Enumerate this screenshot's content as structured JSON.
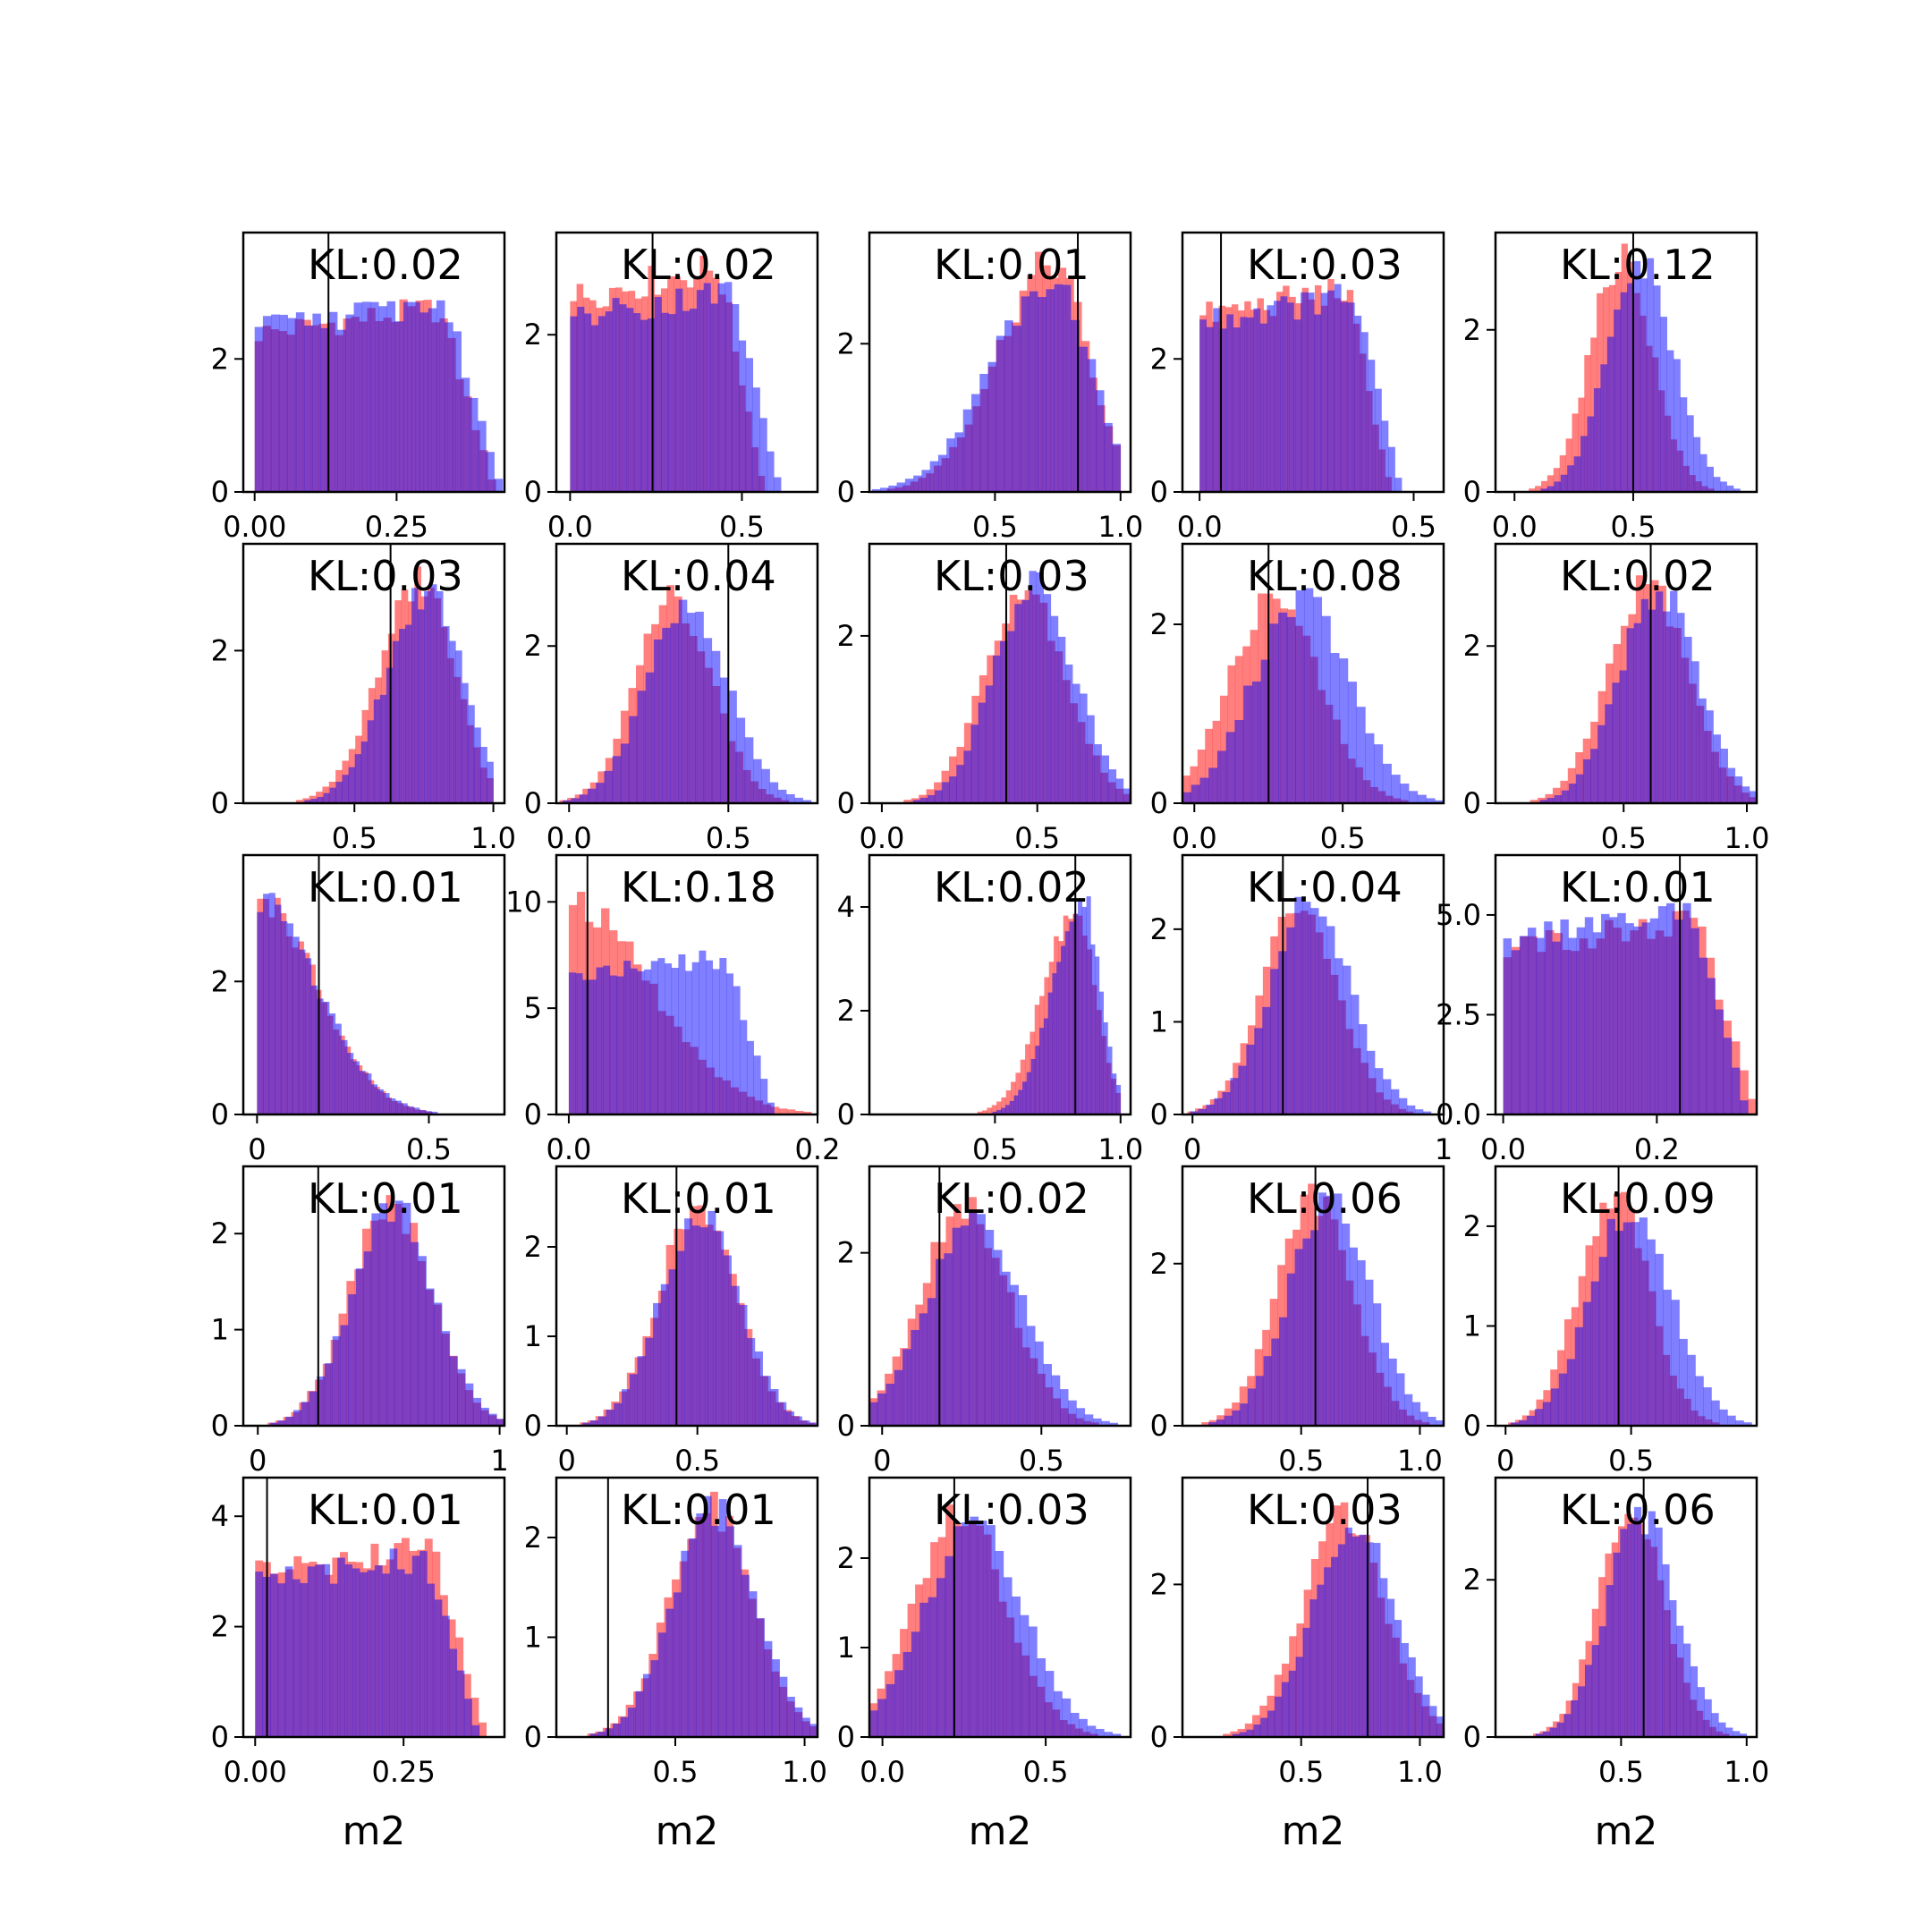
{
  "figure": {
    "x_axis_label": "m2",
    "colors": {
      "series_a": "#ff0000",
      "series_b": "#0000ff",
      "series_alpha": 0.5,
      "marker_line": "#000000",
      "frame": "#000000"
    }
  },
  "chart_data": [
    {
      "type": "histogram",
      "row": 0,
      "col": 0,
      "annotation": "KL:0.02",
      "xlim": [
        -0.02,
        0.44
      ],
      "ylim": [
        0,
        3.9
      ],
      "xticks": [
        0.0,
        0.25
      ],
      "xtick_labels": [
        "0.00",
        "0.25"
      ],
      "yticks": [
        0,
        2
      ],
      "ytick_labels": [
        "0",
        "2"
      ],
      "marker_x": 0.13,
      "dist_a": {
        "shape": "uniform",
        "lo": 0.0,
        "hi": 0.36,
        "peak": 2.8
      },
      "dist_b": {
        "shape": "uniform",
        "lo": 0.0,
        "hi": 0.37,
        "peak": 2.9
      }
    },
    {
      "type": "histogram",
      "row": 0,
      "col": 1,
      "annotation": "KL:0.02",
      "xlim": [
        -0.04,
        0.72
      ],
      "ylim": [
        0,
        3.3
      ],
      "xticks": [
        0.0,
        0.5
      ],
      "xtick_labels": [
        "0.0",
        "0.5"
      ],
      "yticks": [
        0,
        2
      ],
      "ytick_labels": [
        "0",
        "2"
      ],
      "marker_x": 0.24,
      "dist_a": {
        "shape": "uniform",
        "lo": 0.0,
        "hi": 0.48,
        "peak": 2.9
      },
      "dist_b": {
        "shape": "uniform",
        "lo": 0.0,
        "hi": 0.52,
        "peak": 2.6
      }
    },
    {
      "type": "histogram",
      "row": 0,
      "col": 2,
      "annotation": "KL:0.01",
      "xlim": [
        0.0,
        1.04
      ],
      "ylim": [
        0,
        3.5
      ],
      "xticks": [
        0.5,
        1.0
      ],
      "xtick_labels": [
        "0.5",
        "1.0"
      ],
      "yticks": [
        0,
        2
      ],
      "ytick_labels": [
        "0",
        "2"
      ],
      "marker_x": 0.83,
      "dist_a": {
        "shape": "skew",
        "mode": 0.73,
        "left": 0.22,
        "right": 0.14,
        "lo": 0.0,
        "hi": 1.0,
        "peak": 3.1
      },
      "dist_b": {
        "shape": "skew",
        "mode": 0.73,
        "left": 0.24,
        "right": 0.15,
        "lo": 0.0,
        "hi": 1.0,
        "peak": 2.9
      }
    },
    {
      "type": "histogram",
      "row": 0,
      "col": 3,
      "annotation": "KL:0.03",
      "xlim": [
        -0.04,
        0.57
      ],
      "ylim": [
        0,
        3.9
      ],
      "xticks": [
        0.0,
        0.5
      ],
      "xtick_labels": [
        "0.0",
        "0.5"
      ],
      "yticks": [
        0,
        2
      ],
      "ytick_labels": [
        "0",
        "2"
      ],
      "marker_x": 0.05,
      "dist_a": {
        "shape": "uniform",
        "lo": 0.0,
        "hi": 0.38,
        "peak": 3.1
      },
      "dist_b": {
        "shape": "uniform",
        "lo": 0.0,
        "hi": 0.4,
        "peak": 3.0
      }
    },
    {
      "type": "histogram",
      "row": 0,
      "col": 4,
      "annotation": "KL:0.12",
      "xlim": [
        -0.08,
        1.02
      ],
      "ylim": [
        0,
        3.2
      ],
      "xticks": [
        0.0,
        0.5
      ],
      "xtick_labels": [
        "0.0",
        "0.5"
      ],
      "yticks": [
        0,
        2
      ],
      "ytick_labels": [
        "0",
        "2"
      ],
      "marker_x": 0.5,
      "dist_a": {
        "shape": "gauss",
        "mu": 0.45,
        "sd": 0.13,
        "peak": 2.9
      },
      "dist_b": {
        "shape": "gauss",
        "mu": 0.53,
        "sd": 0.14,
        "peak": 2.8
      }
    },
    {
      "type": "histogram",
      "row": 1,
      "col": 0,
      "annotation": "KL:0.03",
      "xlim": [
        0.1,
        1.04
      ],
      "ylim": [
        0,
        3.4
      ],
      "xticks": [
        0.5,
        1.0
      ],
      "xtick_labels": [
        "0.5",
        "1.0"
      ],
      "yticks": [
        0,
        2
      ],
      "ytick_labels": [
        "0",
        "2"
      ],
      "marker_x": 0.63,
      "dist_a": {
        "shape": "skew",
        "mode": 0.74,
        "left": 0.15,
        "right": 0.12,
        "lo": 0.0,
        "hi": 1.0,
        "peak": 2.9
      },
      "dist_b": {
        "shape": "skew",
        "mode": 0.77,
        "left": 0.15,
        "right": 0.12,
        "lo": 0.0,
        "hi": 1.0,
        "peak": 2.8
      }
    },
    {
      "type": "histogram",
      "row": 1,
      "col": 1,
      "annotation": "KL:0.04",
      "xlim": [
        -0.04,
        0.78
      ],
      "ylim": [
        0,
        3.3
      ],
      "xticks": [
        0.0,
        0.5
      ],
      "xtick_labels": [
        "0.0",
        "0.5"
      ],
      "yticks": [
        0,
        2
      ],
      "ytick_labels": [
        "0",
        "2"
      ],
      "marker_x": 0.5,
      "dist_a": {
        "shape": "gauss",
        "mu": 0.33,
        "sd": 0.12,
        "peak": 2.6
      },
      "dist_b": {
        "shape": "gauss",
        "mu": 0.37,
        "sd": 0.13,
        "peak": 2.5
      }
    },
    {
      "type": "histogram",
      "row": 1,
      "col": 2,
      "annotation": "KL:0.03",
      "xlim": [
        -0.04,
        0.8
      ],
      "ylim": [
        0,
        3.1
      ],
      "xticks": [
        0.0,
        0.5
      ],
      "xtick_labels": [
        "0.0",
        "0.5"
      ],
      "yticks": [
        0,
        2
      ],
      "ytick_labels": [
        "0",
        "2"
      ],
      "marker_x": 0.4,
      "dist_a": {
        "shape": "gauss",
        "mu": 0.46,
        "sd": 0.13,
        "peak": 2.6
      },
      "dist_b": {
        "shape": "gauss",
        "mu": 0.49,
        "sd": 0.13,
        "peak": 2.6
      }
    },
    {
      "type": "histogram",
      "row": 1,
      "col": 3,
      "annotation": "KL:0.08",
      "xlim": [
        -0.04,
        0.84
      ],
      "ylim": [
        0,
        2.9
      ],
      "xticks": [
        0.0,
        0.5
      ],
      "xtick_labels": [
        "0.0",
        "0.5"
      ],
      "yticks": [
        0,
        2
      ],
      "ytick_labels": [
        "0",
        "2"
      ],
      "marker_x": 0.25,
      "dist_a": {
        "shape": "gauss",
        "mu": 0.27,
        "sd": 0.15,
        "peak": 2.3
      },
      "dist_b": {
        "shape": "gauss",
        "mu": 0.36,
        "sd": 0.16,
        "peak": 2.3
      }
    },
    {
      "type": "histogram",
      "row": 1,
      "col": 4,
      "annotation": "KL:0.02",
      "xlim": [
        -0.02,
        1.04
      ],
      "ylim": [
        0,
        3.3
      ],
      "xticks": [
        0.5,
        1.0
      ],
      "xtick_labels": [
        "0.5",
        "1.0"
      ],
      "yticks": [
        0,
        2
      ],
      "ytick_labels": [
        "0",
        "2"
      ],
      "marker_x": 0.61,
      "dist_a": {
        "shape": "gauss",
        "mu": 0.6,
        "sd": 0.16,
        "peak": 2.8
      },
      "dist_b": {
        "shape": "gauss",
        "mu": 0.64,
        "sd": 0.16,
        "peak": 2.7
      }
    },
    {
      "type": "histogram",
      "row": 2,
      "col": 0,
      "annotation": "KL:0.01",
      "xlim": [
        -0.04,
        0.72
      ],
      "ylim": [
        0,
        3.9
      ],
      "xticks": [
        0.0,
        0.5
      ],
      "xtick_labels": [
        "0",
        "0.5"
      ],
      "yticks": [
        0,
        2
      ],
      "ytick_labels": [
        "0",
        "2"
      ],
      "marker_x": 0.18,
      "dist_a": {
        "shape": "halfg",
        "lo": 0.0,
        "sd": 0.17,
        "peak": 3.3
      },
      "dist_b": {
        "shape": "halfg",
        "lo": 0.0,
        "sd": 0.175,
        "peak": 3.2
      }
    },
    {
      "type": "histogram",
      "row": 2,
      "col": 1,
      "annotation": "KL:0.18",
      "xlim": [
        -0.01,
        0.2
      ],
      "ylim": [
        0,
        12.2
      ],
      "xticks": [
        0.0,
        0.2
      ],
      "xtick_labels": [
        "0.0",
        "0.2"
      ],
      "yticks": [
        0,
        5,
        10
      ],
      "ytick_labels": [
        "0",
        "5",
        "10"
      ],
      "marker_x": 0.015,
      "dist_a": {
        "shape": "halfg",
        "lo": 0.0,
        "sd": 0.065,
        "peak": 10.0
      },
      "dist_b": {
        "shape": "uniform",
        "lo": 0.0,
        "hi": 0.14,
        "peak": 7.5
      }
    },
    {
      "type": "histogram",
      "row": 2,
      "col": 2,
      "annotation": "KL:0.02",
      "xlim": [
        0.0,
        1.04
      ],
      "ylim": [
        0,
        5.0
      ],
      "xticks": [
        0.5,
        1.0
      ],
      "xtick_labels": [
        "0.5",
        "1.0"
      ],
      "yticks": [
        0,
        2,
        4
      ],
      "ytick_labels": [
        "0",
        "2",
        "4"
      ],
      "marker_x": 0.82,
      "dist_a": {
        "shape": "skew",
        "mode": 0.82,
        "left": 0.13,
        "right": 0.08,
        "lo": 0.0,
        "hi": 1.0,
        "peak": 3.9
      },
      "dist_b": {
        "shape": "skew",
        "mode": 0.85,
        "left": 0.12,
        "right": 0.07,
        "lo": 0.0,
        "hi": 1.0,
        "peak": 4.1
      }
    },
    {
      "type": "histogram",
      "row": 2,
      "col": 3,
      "annotation": "KL:0.04",
      "xlim": [
        -0.04,
        1.0
      ],
      "ylim": [
        0,
        2.8
      ],
      "xticks": [
        0.0,
        1.0
      ],
      "xtick_labels": [
        "0",
        "1"
      ],
      "yticks": [
        0,
        1,
        2
      ],
      "ytick_labels": [
        "0",
        "1",
        "2"
      ],
      "marker_x": 0.36,
      "dist_a": {
        "shape": "gauss",
        "mu": 0.43,
        "sd": 0.15,
        "peak": 2.3
      },
      "dist_b": {
        "shape": "gauss",
        "mu": 0.47,
        "sd": 0.16,
        "peak": 2.3
      }
    },
    {
      "type": "histogram",
      "row": 2,
      "col": 4,
      "annotation": "KL:0.01",
      "xlim": [
        -0.01,
        0.33
      ],
      "ylim": [
        0,
        6.5
      ],
      "xticks": [
        0.0,
        0.2
      ],
      "xtick_labels": [
        "0.0",
        "0.2"
      ],
      "yticks": [
        0,
        2.5,
        5
      ],
      "ytick_labels": [
        "0.0",
        "2.5",
        "5.0"
      ],
      "marker_x": 0.23,
      "dist_a": {
        "shape": "uniform",
        "lo": 0.0,
        "hi": 0.28,
        "peak": 4.9
      },
      "dist_b": {
        "shape": "uniform",
        "lo": 0.0,
        "hi": 0.27,
        "peak": 5.2
      }
    },
    {
      "type": "histogram",
      "row": 3,
      "col": 0,
      "annotation": "KL:0.01",
      "xlim": [
        -0.06,
        1.02
      ],
      "ylim": [
        0,
        2.7
      ],
      "xticks": [
        0.0,
        1.0
      ],
      "xtick_labels": [
        "0",
        "1"
      ],
      "yticks": [
        0,
        1,
        2
      ],
      "ytick_labels": [
        "0",
        "1",
        "2"
      ],
      "marker_x": 0.25,
      "dist_a": {
        "shape": "gauss",
        "mu": 0.55,
        "sd": 0.17,
        "peak": 2.3
      },
      "dist_b": {
        "shape": "gauss",
        "mu": 0.56,
        "sd": 0.17,
        "peak": 2.3
      }
    },
    {
      "type": "histogram",
      "row": 3,
      "col": 1,
      "annotation": "KL:0.01",
      "xlim": [
        -0.04,
        0.96
      ],
      "ylim": [
        0,
        2.9
      ],
      "xticks": [
        0.0,
        0.5
      ],
      "xtick_labels": [
        "0",
        "0.5"
      ],
      "yticks": [
        0,
        1,
        2
      ],
      "ytick_labels": [
        "0",
        "1",
        "2"
      ],
      "marker_x": 0.42,
      "dist_a": {
        "shape": "gauss",
        "mu": 0.5,
        "sd": 0.15,
        "peak": 2.4
      },
      "dist_b": {
        "shape": "gauss",
        "mu": 0.51,
        "sd": 0.15,
        "peak": 2.4
      }
    },
    {
      "type": "histogram",
      "row": 3,
      "col": 2,
      "annotation": "KL:0.02",
      "xlim": [
        -0.04,
        0.78
      ],
      "ylim": [
        0,
        3.0
      ],
      "xticks": [
        0.0,
        0.5
      ],
      "xtick_labels": [
        "0",
        "0.5"
      ],
      "yticks": [
        0,
        2
      ],
      "ytick_labels": [
        "0",
        "2"
      ],
      "marker_x": 0.18,
      "dist_a": {
        "shape": "gauss",
        "mu": 0.26,
        "sd": 0.14,
        "peak": 2.5
      },
      "dist_b": {
        "shape": "gauss",
        "mu": 0.29,
        "sd": 0.15,
        "peak": 2.4
      }
    },
    {
      "type": "histogram",
      "row": 3,
      "col": 3,
      "annotation": "KL:0.06",
      "xlim": [
        0.0,
        1.1
      ],
      "ylim": [
        0,
        3.2
      ],
      "xticks": [
        0.5,
        1.0
      ],
      "xtick_labels": [
        "0.5",
        "1.0"
      ],
      "yticks": [
        0,
        2
      ],
      "ytick_labels": [
        "0",
        "2"
      ],
      "marker_x": 0.56,
      "dist_a": {
        "shape": "gauss",
        "mu": 0.56,
        "sd": 0.16,
        "peak": 2.8
      },
      "dist_b": {
        "shape": "gauss",
        "mu": 0.62,
        "sd": 0.17,
        "peak": 2.8
      }
    },
    {
      "type": "histogram",
      "row": 3,
      "col": 4,
      "annotation": "KL:0.09",
      "xlim": [
        -0.04,
        1.0
      ],
      "ylim": [
        0,
        2.6
      ],
      "xticks": [
        0.0,
        0.5
      ],
      "xtick_labels": [
        "0",
        "0.5"
      ],
      "yticks": [
        0,
        1,
        2
      ],
      "ytick_labels": [
        "0",
        "1",
        "2"
      ],
      "marker_x": 0.45,
      "dist_a": {
        "shape": "gauss",
        "mu": 0.43,
        "sd": 0.14,
        "peak": 2.3
      },
      "dist_b": {
        "shape": "gauss",
        "mu": 0.5,
        "sd": 0.16,
        "peak": 2.2
      }
    },
    {
      "type": "histogram",
      "row": 4,
      "col": 0,
      "annotation": "KL:0.01",
      "xlim": [
        -0.02,
        0.42
      ],
      "ylim": [
        0,
        4.7
      ],
      "xticks": [
        0.0,
        0.25
      ],
      "xtick_labels": [
        "0.00",
        "0.25"
      ],
      "yticks": [
        0,
        2,
        4
      ],
      "ytick_labels": [
        "0",
        "2",
        "4"
      ],
      "marker_x": 0.02,
      "dist_a": {
        "shape": "uniform",
        "lo": 0.0,
        "hi": 0.33,
        "peak": 3.5
      },
      "dist_b": {
        "shape": "uniform",
        "lo": 0.0,
        "hi": 0.32,
        "peak": 3.3
      }
    },
    {
      "type": "histogram",
      "row": 4,
      "col": 1,
      "annotation": "KL:0.01",
      "xlim": [
        0.04,
        1.05
      ],
      "ylim": [
        0,
        2.6
      ],
      "xticks": [
        0.5,
        1.0
      ],
      "xtick_labels": [
        "0.5",
        "1.0"
      ],
      "yticks": [
        0,
        1,
        2
      ],
      "ytick_labels": [
        "0",
        "1",
        "2"
      ],
      "marker_x": 0.24,
      "dist_a": {
        "shape": "gauss",
        "mu": 0.64,
        "sd": 0.16,
        "peak": 2.3
      },
      "dist_b": {
        "shape": "gauss",
        "mu": 0.65,
        "sd": 0.16,
        "peak": 2.3
      }
    },
    {
      "type": "histogram",
      "row": 4,
      "col": 2,
      "annotation": "KL:0.03",
      "xlim": [
        -0.04,
        0.76
      ],
      "ylim": [
        0,
        2.9
      ],
      "xticks": [
        0.0,
        0.5
      ],
      "xtick_labels": [
        "0.0",
        "0.5"
      ],
      "yticks": [
        0,
        1,
        2
      ],
      "ytick_labels": [
        "0",
        "1",
        "2"
      ],
      "marker_x": 0.22,
      "dist_a": {
        "shape": "gauss",
        "mu": 0.24,
        "sd": 0.14,
        "peak": 2.5
      },
      "dist_b": {
        "shape": "gauss",
        "mu": 0.28,
        "sd": 0.15,
        "peak": 2.4
      }
    },
    {
      "type": "histogram",
      "row": 4,
      "col": 3,
      "annotation": "KL:0.03",
      "xlim": [
        0.0,
        1.1
      ],
      "ylim": [
        0,
        3.4
      ],
      "xticks": [
        0.5,
        1.0
      ],
      "xtick_labels": [
        "0.5",
        "1.0"
      ],
      "yticks": [
        0,
        2
      ],
      "ytick_labels": [
        "0",
        "2"
      ],
      "marker_x": 0.78,
      "dist_a": {
        "shape": "gauss",
        "mu": 0.68,
        "sd": 0.17,
        "peak": 2.9
      },
      "dist_b": {
        "shape": "gauss",
        "mu": 0.72,
        "sd": 0.17,
        "peak": 2.8
      }
    },
    {
      "type": "histogram",
      "row": 4,
      "col": 4,
      "annotation": "KL:0.06",
      "xlim": [
        0.0,
        1.04
      ],
      "ylim": [
        0,
        3.3
      ],
      "xticks": [
        0.5,
        1.0
      ],
      "xtick_labels": [
        "0.5",
        "1.0"
      ],
      "yticks": [
        0,
        2
      ],
      "ytick_labels": [
        "0",
        "2"
      ],
      "marker_x": 0.59,
      "dist_a": {
        "shape": "gauss",
        "mu": 0.54,
        "sd": 0.13,
        "peak": 2.9
      },
      "dist_b": {
        "shape": "gauss",
        "mu": 0.58,
        "sd": 0.14,
        "peak": 2.8
      }
    }
  ]
}
